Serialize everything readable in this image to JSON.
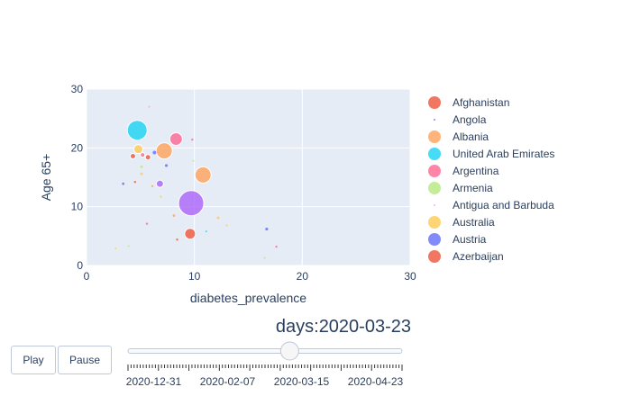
{
  "chart_data": {
    "type": "scatter",
    "xlabel": "diabetes_prevalence",
    "ylabel": "Age 65+",
    "xlim": [
      0,
      30
    ],
    "ylim": [
      0,
      30
    ],
    "x_ticks": [
      "0",
      "10",
      "20",
      "30"
    ],
    "y_ticks": [
      "0",
      "10",
      "20",
      "30"
    ],
    "grid": true,
    "legend_position": "right",
    "legend": [
      {
        "name": "Afghanistan",
        "color": "#EF553B",
        "marker_size": "large"
      },
      {
        "name": "Angola",
        "color": "#636EFA",
        "marker_size": "tiny"
      },
      {
        "name": "Albania",
        "color": "#FFA15A",
        "marker_size": "large"
      },
      {
        "name": "United Arab Emirates",
        "color": "#19D3F3",
        "marker_size": "large"
      },
      {
        "name": "Argentina",
        "color": "#FF6692",
        "marker_size": "large"
      },
      {
        "name": "Armenia",
        "color": "#B6E880",
        "marker_size": "large"
      },
      {
        "name": "Antigua and Barbuda",
        "color": "#FF97FF",
        "marker_size": "tiny"
      },
      {
        "name": "Australia",
        "color": "#FECB52",
        "marker_size": "large"
      },
      {
        "name": "Austria",
        "color": "#636EFA",
        "marker_size": "large"
      },
      {
        "name": "Azerbaijan",
        "color": "#EF553B",
        "marker_size": "large"
      }
    ],
    "points": [
      {
        "x": 4.7,
        "y": 23.0,
        "size": 11,
        "color": "#19D3F3"
      },
      {
        "x": 7.2,
        "y": 19.5,
        "size": 9,
        "color": "#FFA15A"
      },
      {
        "x": 8.3,
        "y": 21.5,
        "size": 7,
        "color": "#FF6692"
      },
      {
        "x": 10.8,
        "y": 15.4,
        "size": 9,
        "color": "#FFA15A"
      },
      {
        "x": 9.7,
        "y": 10.6,
        "size": 14,
        "color": "#AB63FA"
      },
      {
        "x": 9.6,
        "y": 5.4,
        "size": 6,
        "color": "#EF553B"
      },
      {
        "x": 4.8,
        "y": 19.8,
        "size": 5,
        "color": "#FECB52"
      },
      {
        "x": 6.8,
        "y": 13.9,
        "size": 4,
        "color": "#AB63FA"
      },
      {
        "x": 4.3,
        "y": 18.6,
        "size": 3,
        "color": "#EF553B"
      },
      {
        "x": 5.7,
        "y": 18.4,
        "size": 3,
        "color": "#EF553B"
      },
      {
        "x": 5.2,
        "y": 18.8,
        "size": 2.5,
        "color": "#FF6692"
      },
      {
        "x": 6.3,
        "y": 19.2,
        "size": 2,
        "color": "#636EFA"
      },
      {
        "x": 7.4,
        "y": 17.0,
        "size": 1.6,
        "color": "#636EFA"
      },
      {
        "x": 5.1,
        "y": 16.8,
        "size": 1.5,
        "color": "#B6E880"
      },
      {
        "x": 5.1,
        "y": 15.6,
        "size": 1.4,
        "color": "#FECB52"
      },
      {
        "x": 3.4,
        "y": 13.9,
        "size": 1.4,
        "color": "#636EFA"
      },
      {
        "x": 4.5,
        "y": 14.2,
        "size": 1.2,
        "color": "#EF553B"
      },
      {
        "x": 6.1,
        "y": 13.5,
        "size": 1.2,
        "color": "#FFA15A"
      },
      {
        "x": 6.9,
        "y": 11.7,
        "size": 1.2,
        "color": "#FECB52"
      },
      {
        "x": 8.1,
        "y": 8.5,
        "size": 1.4,
        "color": "#FFA15A"
      },
      {
        "x": 5.6,
        "y": 7.1,
        "size": 1.2,
        "color": "#FF6692"
      },
      {
        "x": 12.2,
        "y": 8.1,
        "size": 1.4,
        "color": "#FECB52"
      },
      {
        "x": 16.7,
        "y": 6.2,
        "size": 1.6,
        "color": "#636EFA"
      },
      {
        "x": 17.6,
        "y": 3.2,
        "size": 1.2,
        "color": "#FF6692"
      },
      {
        "x": 8.4,
        "y": 4.4,
        "size": 1.2,
        "color": "#EF553B"
      },
      {
        "x": 3.9,
        "y": 3.3,
        "size": 1.0,
        "color": "#B6E880"
      },
      {
        "x": 5.8,
        "y": 27.0,
        "size": 1.0,
        "color": "#FF97FF"
      },
      {
        "x": 9.8,
        "y": 21.4,
        "size": 1.2,
        "color": "#FF6692"
      },
      {
        "x": 9.9,
        "y": 17.8,
        "size": 1.0,
        "color": "#B6E880"
      },
      {
        "x": 2.7,
        "y": 2.9,
        "size": 1.0,
        "color": "#FECB52"
      },
      {
        "x": 16.5,
        "y": 1.3,
        "size": 1.0,
        "color": "#B6E880"
      },
      {
        "x": 11.1,
        "y": 5.8,
        "size": 1.0,
        "color": "#19D3F3"
      },
      {
        "x": 13.0,
        "y": 6.8,
        "size": 1.0,
        "color": "#FECB52"
      }
    ]
  },
  "slider": {
    "prefix": "days:",
    "current_value": "2020-03-23",
    "position_fraction": 0.59,
    "ticks": [
      "2020-12-31",
      "2020-02-07",
      "2020-03-15",
      "2020-04-23"
    ]
  },
  "controls": {
    "play_label": "Play",
    "pause_label": "Pause"
  }
}
